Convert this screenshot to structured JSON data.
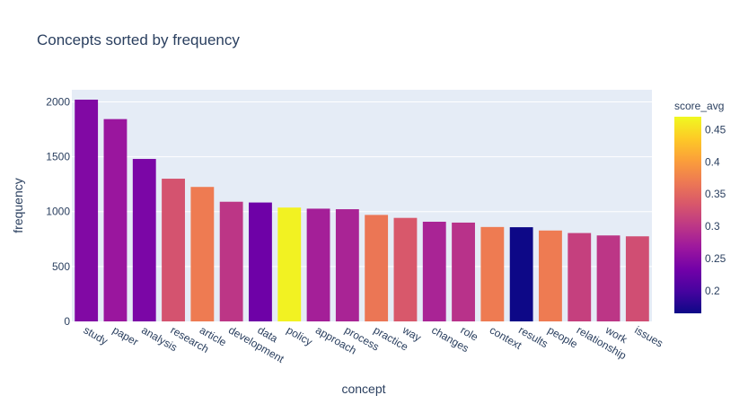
{
  "chart_data": {
    "type": "bar",
    "title": "Concepts sorted by frequency",
    "xlabel": "concept",
    "ylabel": "frequency",
    "ylim": [
      0,
      2110
    ],
    "yticks": [
      0,
      500,
      1000,
      1500,
      2000
    ],
    "grid": true,
    "categories": [
      "study",
      "paper",
      "analysis",
      "research",
      "article",
      "development",
      "data",
      "policy",
      "approach",
      "process",
      "practice",
      "way",
      "changes",
      "role",
      "context",
      "results",
      "people",
      "relationship",
      "work",
      "issues"
    ],
    "values": [
      2020,
      1843,
      1480,
      1300,
      1225,
      1090,
      1083,
      1037,
      1027,
      1022,
      970,
      943,
      908,
      900,
      860,
      858,
      828,
      805,
      783,
      775
    ],
    "score_avg": [
      0.245,
      0.265,
      0.24,
      0.33,
      0.37,
      0.3,
      0.23,
      0.465,
      0.275,
      0.28,
      0.365,
      0.335,
      0.28,
      0.295,
      0.37,
      0.165,
      0.37,
      0.31,
      0.3,
      0.325
    ],
    "colorbar": {
      "title": "score_avg",
      "range": [
        0.165,
        0.47
      ],
      "ticks": [
        0.2,
        0.25,
        0.3,
        0.35,
        0.4,
        0.45
      ],
      "tick_labels": [
        "0.2",
        "0.25",
        "0.3",
        "0.35",
        "0.4",
        "0.45"
      ],
      "colorscale": [
        "#0d0887",
        "#46039f",
        "#7201a8",
        "#9c179e",
        "#bd3786",
        "#d8576b",
        "#ed7953",
        "#fb9f3a",
        "#fdca26",
        "#f0f921"
      ]
    },
    "colors": {
      "plot_bg": "#e5ecf6",
      "grid": "#ffffff",
      "text": "#2a3f5f"
    }
  }
}
